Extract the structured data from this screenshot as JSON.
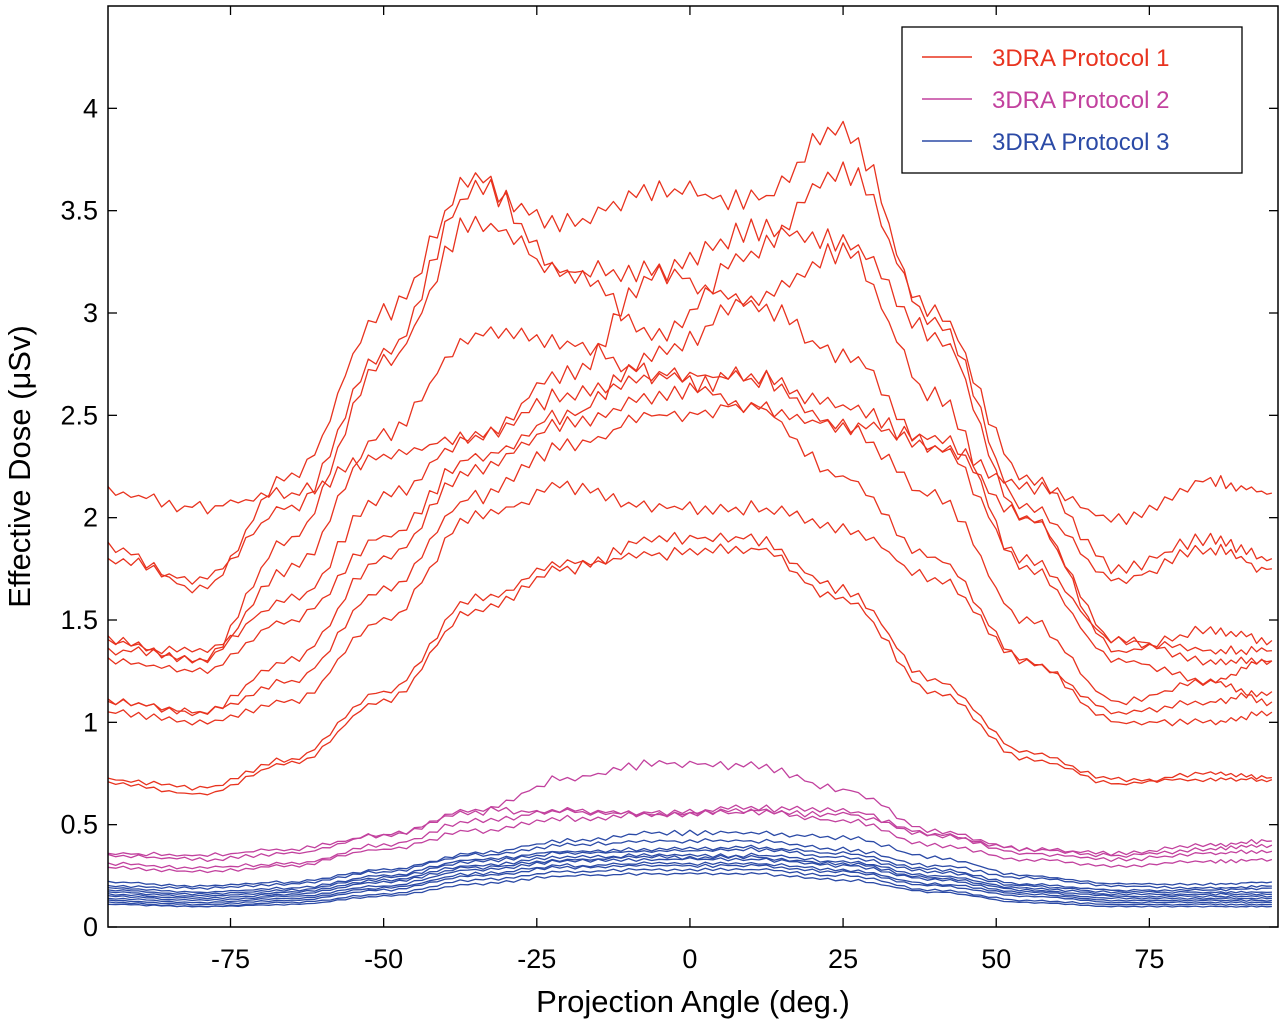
{
  "chart_data": {
    "type": "line",
    "xlabel": "Projection Angle (deg.)",
    "ylabel": "Effective Dose (μSv)",
    "xlim": [
      -95,
      96
    ],
    "ylim": [
      0,
      4.5
    ],
    "xticks": [
      -75,
      -50,
      -25,
      0,
      25,
      50,
      75
    ],
    "yticks": [
      0,
      0.5,
      1,
      1.5,
      2,
      2.5,
      3,
      3.5,
      4
    ],
    "xtick_labels": [
      "-75",
      "-50",
      "-25",
      "0",
      "25",
      "50",
      "75"
    ],
    "ytick_labels": [
      "0",
      "0.5",
      "1",
      "1.5",
      "2",
      "2.5",
      "3",
      "3.5",
      "4"
    ],
    "grid": false,
    "legend_position": "top-right",
    "x": [
      -95,
      -80,
      -65,
      -50,
      -35,
      -20,
      -5,
      10,
      25,
      40,
      55,
      70,
      85,
      95
    ],
    "groups": [
      {
        "name": "3DRA Protocol 1",
        "color": "#e8331f",
        "series": [
          {
            "values": [
              2.12,
              2.05,
              2.12,
              2.3,
              2.4,
              2.6,
              2.7,
              2.68,
              2.55,
              2.35,
              2.15,
              2.0,
              2.18,
              2.12
            ]
          },
          {
            "values": [
              1.85,
              1.65,
              2.2,
              3.0,
              3.65,
              3.2,
              2.9,
              3.3,
              3.7,
              3.0,
              2.2,
              1.75,
              1.9,
              1.8
            ]
          },
          {
            "values": [
              1.8,
              1.7,
              2.05,
              2.8,
              3.6,
              3.45,
              3.6,
              3.55,
              3.9,
              2.95,
              2.05,
              1.7,
              1.85,
              1.75
            ]
          },
          {
            "values": [
              1.4,
              1.3,
              1.9,
              2.75,
              3.45,
              3.2,
              3.2,
              3.4,
              3.35,
              2.9,
              2.0,
              1.4,
              1.35,
              1.35
            ]
          },
          {
            "values": [
              1.4,
              1.3,
              1.75,
              2.4,
              2.9,
              2.85,
              2.7,
              2.55,
              2.45,
              2.4,
              2.0,
              1.35,
              1.45,
              1.4
            ]
          },
          {
            "values": [
              1.35,
              1.35,
              1.6,
              2.1,
              2.4,
              2.7,
              3.2,
              3.05,
              2.8,
              2.35,
              1.8,
              1.4,
              1.3,
              1.3
            ]
          },
          {
            "values": [
              1.3,
              1.25,
              1.5,
              1.9,
              2.3,
              2.5,
              2.8,
              3.05,
              3.3,
              2.6,
              1.75,
              1.3,
              1.2,
              1.3
            ]
          },
          {
            "values": [
              1.1,
              1.05,
              1.3,
              1.8,
              2.25,
              2.45,
              2.6,
              2.7,
              2.45,
              2.1,
              1.5,
              1.1,
              1.2,
              1.1
            ]
          },
          {
            "values": [
              1.1,
              1.05,
              1.2,
              1.65,
              2.1,
              2.35,
              2.5,
              2.55,
              2.2,
              1.8,
              1.3,
              1.05,
              1.1,
              1.15
            ]
          },
          {
            "values": [
              1.05,
              1.0,
              1.1,
              1.5,
              2.0,
              2.15,
              2.05,
              2.05,
              1.95,
              1.7,
              1.3,
              1.0,
              1.0,
              1.05
            ]
          },
          {
            "values": [
              0.7,
              0.65,
              0.8,
              1.1,
              1.55,
              1.75,
              1.9,
              1.9,
              1.65,
              1.2,
              0.85,
              0.72,
              0.72,
              0.72
            ]
          },
          {
            "values": [
              0.72,
              0.68,
              0.82,
              1.15,
              1.6,
              1.78,
              1.82,
              1.85,
              1.6,
              1.15,
              0.82,
              0.7,
              0.75,
              0.73
            ]
          }
        ]
      },
      {
        "name": "3DRA Protocol 2",
        "color": "#c2419e",
        "series": [
          {
            "values": [
              0.36,
              0.35,
              0.38,
              0.45,
              0.57,
              0.56,
              0.55,
              0.56,
              0.55,
              0.45,
              0.38,
              0.36,
              0.4,
              0.42
            ]
          },
          {
            "values": [
              0.35,
              0.33,
              0.36,
              0.45,
              0.56,
              0.73,
              0.8,
              0.79,
              0.67,
              0.47,
              0.38,
              0.35,
              0.38,
              0.4
            ]
          },
          {
            "values": [
              0.31,
              0.29,
              0.31,
              0.4,
              0.52,
              0.57,
              0.56,
              0.58,
              0.57,
              0.45,
              0.36,
              0.33,
              0.36,
              0.37
            ]
          },
          {
            "values": [
              0.29,
              0.27,
              0.3,
              0.38,
              0.47,
              0.53,
              0.55,
              0.57,
              0.52,
              0.4,
              0.33,
              0.3,
              0.32,
              0.33
            ]
          }
        ]
      },
      {
        "name": "3DRA Protocol 3",
        "color": "#2b4aa6",
        "series": [
          {
            "values": [
              0.22,
              0.2,
              0.22,
              0.28,
              0.36,
              0.42,
              0.46,
              0.46,
              0.44,
              0.34,
              0.25,
              0.21,
              0.21,
              0.22
            ]
          },
          {
            "values": [
              0.2,
              0.19,
              0.21,
              0.27,
              0.35,
              0.4,
              0.42,
              0.42,
              0.38,
              0.3,
              0.24,
              0.2,
              0.19,
              0.2
            ]
          },
          {
            "values": [
              0.19,
              0.17,
              0.19,
              0.25,
              0.33,
              0.37,
              0.38,
              0.39,
              0.36,
              0.28,
              0.21,
              0.18,
              0.18,
              0.19
            ]
          },
          {
            "values": [
              0.18,
              0.16,
              0.18,
              0.24,
              0.32,
              0.36,
              0.37,
              0.38,
              0.34,
              0.27,
              0.2,
              0.17,
              0.17,
              0.17
            ]
          },
          {
            "values": [
              0.17,
              0.15,
              0.17,
              0.23,
              0.3,
              0.34,
              0.35,
              0.35,
              0.32,
              0.25,
              0.19,
              0.16,
              0.16,
              0.16
            ]
          },
          {
            "values": [
              0.16,
              0.14,
              0.16,
              0.22,
              0.29,
              0.33,
              0.34,
              0.34,
              0.31,
              0.24,
              0.18,
              0.15,
              0.15,
              0.15
            ]
          },
          {
            "values": [
              0.15,
              0.13,
              0.15,
              0.2,
              0.28,
              0.32,
              0.33,
              0.33,
              0.3,
              0.23,
              0.17,
              0.14,
              0.14,
              0.14
            ]
          },
          {
            "values": [
              0.14,
              0.12,
              0.14,
              0.19,
              0.26,
              0.3,
              0.31,
              0.31,
              0.28,
              0.21,
              0.16,
              0.13,
              0.13,
              0.13
            ]
          },
          {
            "values": [
              0.13,
              0.11,
              0.13,
              0.18,
              0.25,
              0.29,
              0.3,
              0.3,
              0.27,
              0.2,
              0.15,
              0.12,
              0.12,
              0.12
            ]
          },
          {
            "values": [
              0.12,
              0.1,
              0.12,
              0.16,
              0.23,
              0.27,
              0.28,
              0.28,
              0.25,
              0.18,
              0.13,
              0.11,
              0.11,
              0.11
            ]
          },
          {
            "values": [
              0.11,
              0.1,
              0.11,
              0.15,
              0.21,
              0.25,
              0.26,
              0.26,
              0.23,
              0.17,
              0.12,
              0.1,
              0.1,
              0.1
            ]
          }
        ]
      }
    ]
  }
}
